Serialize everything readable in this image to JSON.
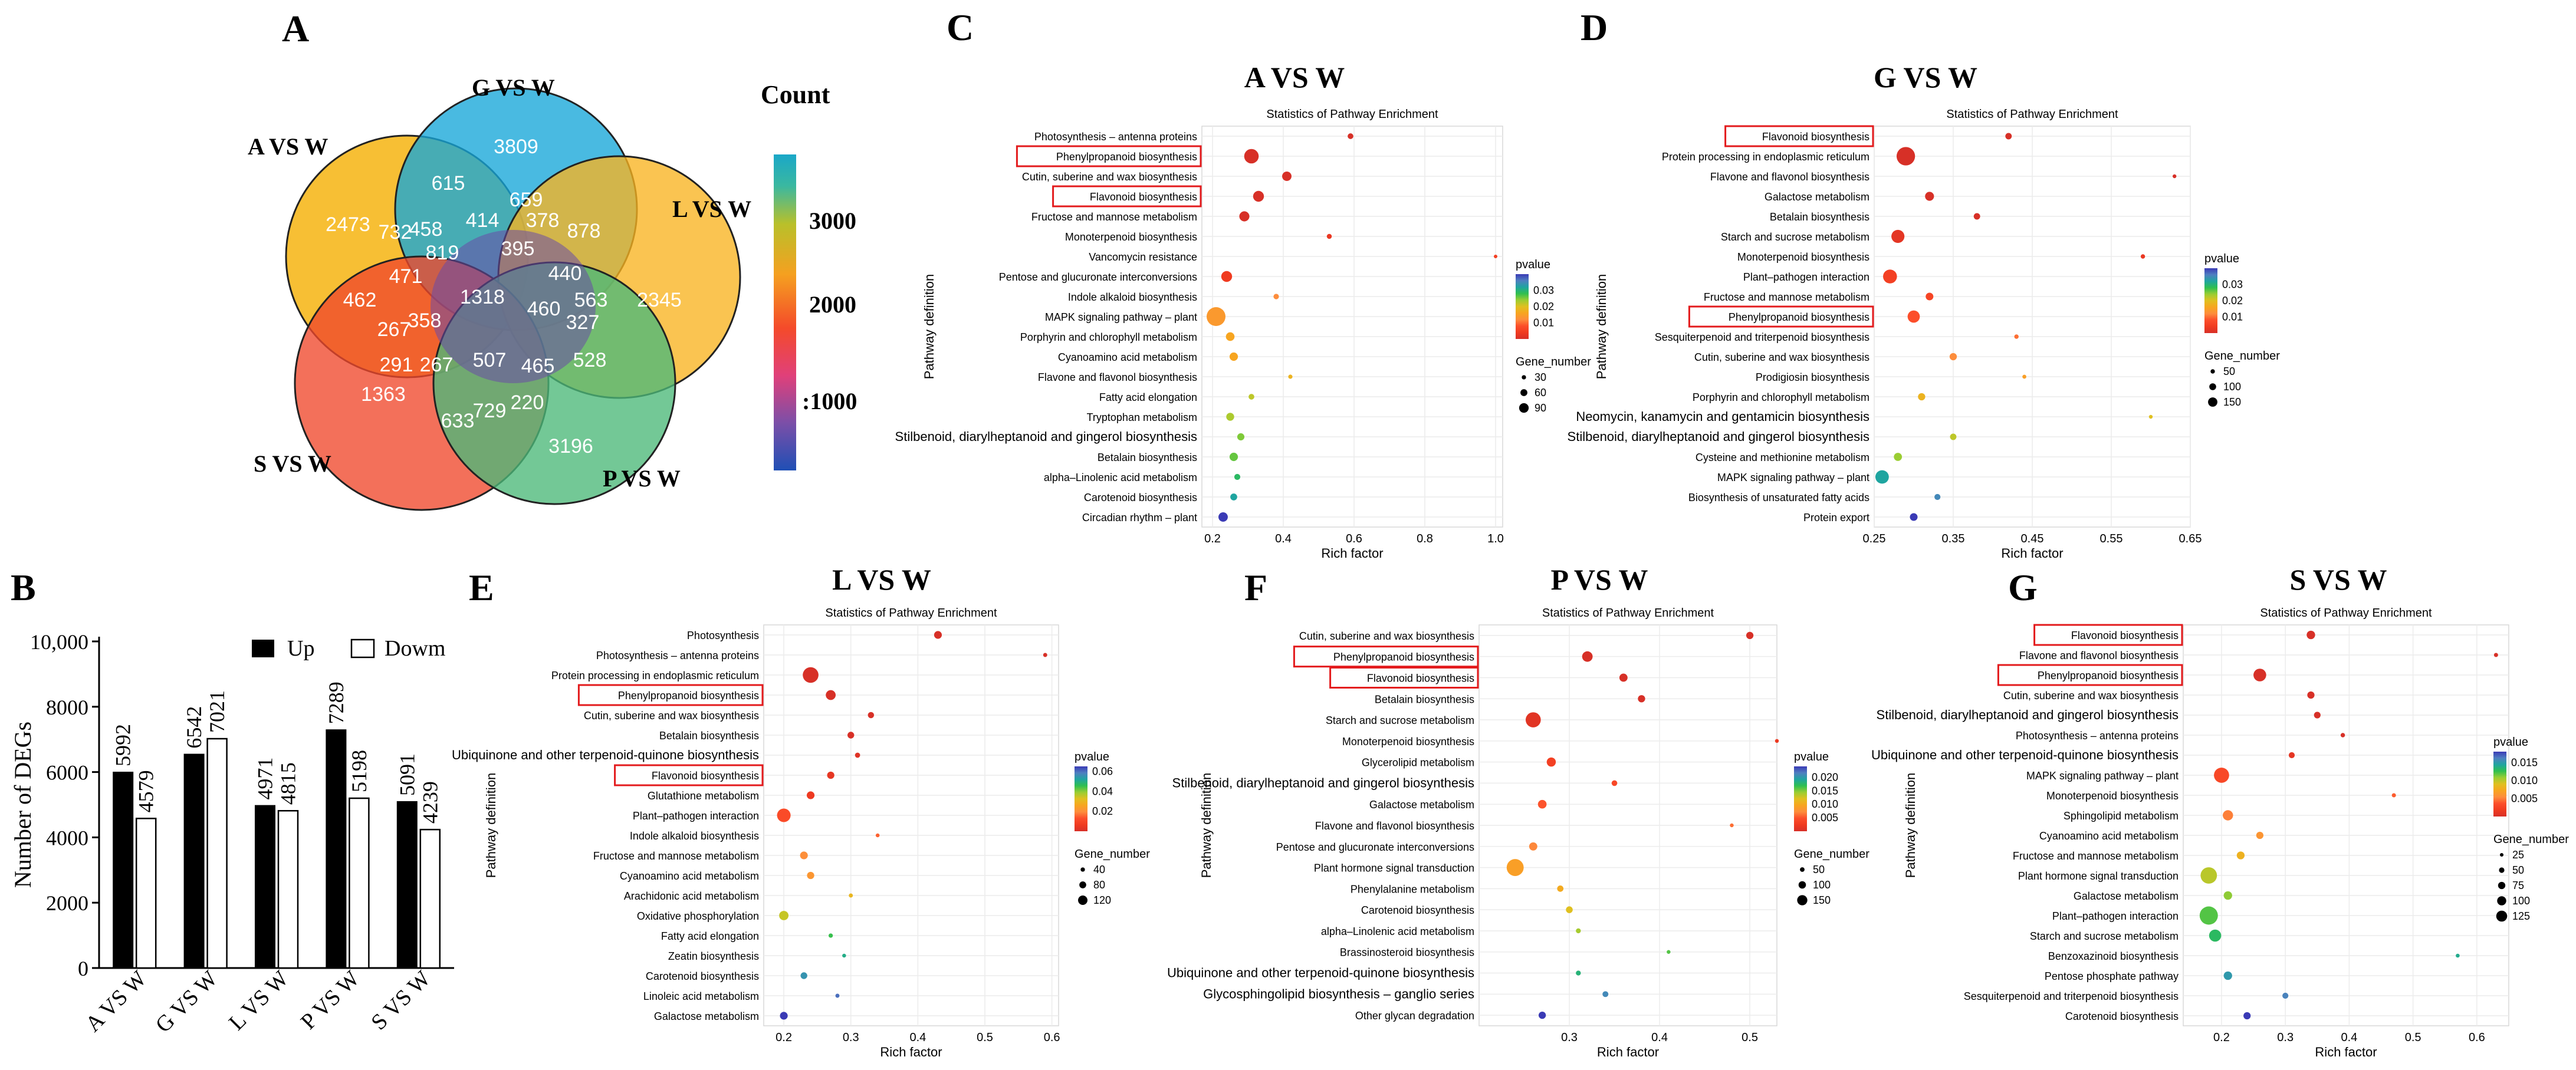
{
  "colors": {
    "palette": [
      "#d73027",
      "#f03b20",
      "#fc4e2a",
      "#fd8d3c",
      "#f7a520",
      "#e0c020",
      "#9acd32",
      "#2fbf4f",
      "#1fa5a0",
      "#4f7fc0",
      "#3a3ab5"
    ],
    "red_box": "#e31a1c",
    "bar_up": "#000000",
    "bar_down": "#ffffff",
    "venn_A": "#f6b81e",
    "venn_G": "#16a7d8",
    "venn_L": "#f8b320",
    "venn_S": "#f0482c",
    "venn_P": "#4cb878"
  },
  "panelA": {
    "letter": "A",
    "sets": [
      "A VS W",
      "G VS W",
      "L VS W",
      "S VS W",
      "P VS W"
    ],
    "legend_title": "Count",
    "legend_ticks": [
      "3000",
      "2000",
      ":1000"
    ],
    "counts": [
      "2473",
      "3809",
      "2345",
      "3196",
      "1363",
      "615",
      "659",
      "878",
      "732",
      "458",
      "414",
      "378",
      "819",
      "395",
      "440",
      "471",
      "1318",
      "460",
      "563",
      "462",
      "267",
      "358",
      "327",
      "528",
      "291",
      "267",
      "507",
      "465",
      "729",
      "220",
      "633"
    ]
  },
  "chart_data": [
    {
      "type": "bar",
      "panel": "B",
      "categories": [
        "A VS W",
        "G VS W",
        "L VS W",
        "P VS W",
        "S VS W"
      ],
      "series": [
        {
          "name": "Up",
          "values": [
            5992,
            6542,
            4971,
            7289,
            5091
          ]
        },
        {
          "name": "Dowm",
          "values": [
            4579,
            7021,
            4815,
            5198,
            4239
          ]
        }
      ],
      "value_labels": {
        "Up": [
          "5992",
          "6542",
          "4971",
          "7289",
          "5091"
        ],
        "Dowm": [
          "4579",
          "7021",
          "4815",
          "5198",
          "4239"
        ]
      },
      "ylabel": "Number of DEGs",
      "yticks": [
        0,
        2000,
        4000,
        6000,
        8000,
        10000
      ],
      "ytick_labels": [
        "0",
        "2000",
        "4000",
        "6000",
        "8000",
        "10,000"
      ],
      "ylim": [
        0,
        10000
      ],
      "legend": [
        "Up",
        "Dowm"
      ]
    },
    {
      "type": "scatter",
      "panel": "C",
      "heading": "A VS W",
      "title": "Statistics of Pathway Enrichment",
      "xlabel": "Rich factor",
      "ylabel": "Pathway definition",
      "xlim": [
        0.17,
        1.02
      ],
      "xticks": [
        0.2,
        0.4,
        0.6,
        0.8,
        1.0
      ],
      "xtick_labels": [
        "0.2",
        "0.4",
        "0.6",
        "0.8",
        "1.0"
      ],
      "pvalue_range": [
        0.0,
        0.04
      ],
      "pvalue_ticks": [
        "0.03",
        "0.02",
        "0.01"
      ],
      "pvalue_tick_values": [
        0.03,
        0.02,
        0.01
      ],
      "gene_ticks": [
        "30",
        "60",
        "90"
      ],
      "gene_tick_values": [
        30,
        60,
        90
      ],
      "gene_range": [
        5,
        110
      ],
      "highlight": [
        "Phenylpropanoid biosynthesis",
        "Flavonoid biosynthesis"
      ],
      "pathways": [
        "Photosynthesis – antenna proteins",
        "Phenylpropanoid biosynthesis",
        "Cutin, suberine and wax biosynthesis",
        "Flavonoid biosynthesis",
        "Fructose and mannose metabolism",
        "Monoterpenoid biosynthesis",
        "Vancomycin resistance",
        "Pentose and glucuronate interconversions",
        "Indole alkaloid biosynthesis",
        "MAPK signaling pathway – plant",
        "Porphyrin and chlorophyll metabolism",
        "Cyanoamino acid metabolism",
        "Flavone and flavonol biosynthesis",
        "Fatty acid elongation",
        "Tryptophan metabolism",
        "Stilbenoid, diarylheptanoid and gingerol biosynthesis",
        "Betalain biosynthesis",
        "alpha–Linolenic acid metabolism",
        "Carotenoid biosynthesis",
        "Circadian rhythm – plant"
      ],
      "rich": [
        0.59,
        0.31,
        0.41,
        0.33,
        0.29,
        0.53,
        1.0,
        0.24,
        0.38,
        0.21,
        0.25,
        0.26,
        0.42,
        0.31,
        0.25,
        0.28,
        0.26,
        0.27,
        0.26,
        0.23
      ],
      "pvalue": [
        0.0,
        0.0,
        0.0,
        0.0,
        0.0,
        0.003,
        0.005,
        0.004,
        0.012,
        0.014,
        0.016,
        0.016,
        0.018,
        0.022,
        0.023,
        0.025,
        0.026,
        0.029,
        0.032,
        0.04
      ],
      "genes": [
        20,
        80,
        45,
        55,
        50,
        15,
        5,
        55,
        18,
        110,
        40,
        38,
        10,
        20,
        35,
        30,
        38,
        22,
        28,
        45
      ]
    },
    {
      "type": "scatter",
      "panel": "D",
      "heading": "G VS W",
      "title": "Statistics of Pathway Enrichment",
      "xlabel": "Rich factor",
      "ylabel": "Pathway definition",
      "xlim": [
        0.25,
        0.65
      ],
      "xticks": [
        0.25,
        0.35,
        0.45,
        0.55,
        0.65
      ],
      "xtick_labels": [
        "0.25",
        "0.35",
        "0.45",
        "0.55",
        "0.65"
      ],
      "pvalue_range": [
        0.0,
        0.04
      ],
      "pvalue_ticks": [
        "0.03",
        "0.02",
        "0.01"
      ],
      "pvalue_tick_values": [
        0.03,
        0.02,
        0.01
      ],
      "gene_ticks": [
        "50",
        "100",
        "150"
      ],
      "gene_tick_values": [
        50,
        100,
        150
      ],
      "gene_range": [
        5,
        190
      ],
      "highlight": [
        "Flavonoid biosynthesis",
        "Phenylpropanoid biosynthesis"
      ],
      "pathways": [
        "Flavonoid biosynthesis",
        "Protein processing in endoplasmic reticulum",
        "Flavone and flavonol biosynthesis",
        "Galactose metabolism",
        "Betalain biosynthesis",
        "Starch and sucrose metabolism",
        "Monoterpenoid biosynthesis",
        "Plant–pathogen interaction",
        "Fructose and mannose metabolism",
        "Phenylpropanoid biosynthesis",
        "Sesquiterpenoid and triterpenoid biosynthesis",
        "Cutin, suberine and wax biosynthesis",
        "Prodigiosin biosynthesis",
        "Porphyrin and chlorophyll metabolism",
        "Neomycin, kanamycin and gentamicin biosynthesis",
        "Stilbenoid, diarylheptanoid and gingerol biosynthesis",
        "Cysteine and methionine metabolism",
        "MAPK signaling pathway – plant",
        "Biosynthesis of unsaturated fatty acids",
        "Protein export"
      ],
      "rich": [
        0.42,
        0.29,
        0.63,
        0.32,
        0.38,
        0.28,
        0.59,
        0.27,
        0.32,
        0.3,
        0.43,
        0.35,
        0.44,
        0.31,
        0.6,
        0.35,
        0.28,
        0.26,
        0.33,
        0.3
      ],
      "pvalue": [
        0.0,
        0.0,
        0.0,
        0.0,
        0.0,
        0.002,
        0.003,
        0.005,
        0.006,
        0.008,
        0.01,
        0.012,
        0.015,
        0.018,
        0.02,
        0.022,
        0.024,
        0.032,
        0.035,
        0.04
      ],
      "genes": [
        40,
        185,
        8,
        70,
        40,
        120,
        15,
        130,
        55,
        110,
        15,
        50,
        10,
        50,
        8,
        40,
        60,
        125,
        35,
        55
      ]
    },
    {
      "type": "scatter",
      "panel": "E",
      "heading": "L VS W",
      "title": "Statistics of Pathway Enrichment",
      "xlabel": "Rich factor",
      "ylabel": "Pathway definition",
      "xlim": [
        0.17,
        0.61
      ],
      "xticks": [
        0.2,
        0.3,
        0.4,
        0.5,
        0.6
      ],
      "xtick_labels": [
        "0.2",
        "0.3",
        "0.4",
        "0.5",
        "0.6"
      ],
      "pvalue_range": [
        0.0,
        0.065
      ],
      "pvalue_ticks": [
        "0.06",
        "0.04",
        "0.02"
      ],
      "pvalue_tick_values": [
        0.06,
        0.04,
        0.02
      ],
      "gene_ticks": [
        "40",
        "80",
        "120"
      ],
      "gene_tick_values": [
        40,
        80,
        120
      ],
      "gene_range": [
        5,
        150
      ],
      "highlight": [
        "Phenylpropanoid biosynthesis",
        "Flavonoid biosynthesis"
      ],
      "pathways": [
        "Photosynthesis",
        "Photosynthesis – antenna proteins",
        "Protein processing in endoplasmic reticulum",
        "Phenylpropanoid biosynthesis",
        "Cutin, suberine and wax biosynthesis",
        "Betalain biosynthesis",
        "Ubiquinone and other terpenoid-quinone biosynthesis",
        "Flavonoid biosynthesis",
        "Glutathione metabolism",
        "Plant–pathogen interaction",
        "Indole alkaloid biosynthesis",
        "Fructose and mannose metabolism",
        "Cyanoamino acid metabolism",
        "Arachidonic acid metabolism",
        "Oxidative phosphorylation",
        "Fatty acid elongation",
        "Zeatin biosynthesis",
        "Carotenoid biosynthesis",
        "Linoleic acid metabolism",
        "Galactose metabolism"
      ],
      "rich": [
        0.43,
        0.59,
        0.24,
        0.27,
        0.33,
        0.3,
        0.31,
        0.27,
        0.24,
        0.2,
        0.34,
        0.23,
        0.24,
        0.3,
        0.2,
        0.27,
        0.29,
        0.23,
        0.28,
        0.2
      ],
      "pvalue": [
        0.0,
        0.0,
        0.0,
        0.0,
        0.0,
        0.0,
        0.002,
        0.004,
        0.006,
        0.012,
        0.015,
        0.02,
        0.022,
        0.03,
        0.035,
        0.045,
        0.05,
        0.055,
        0.06,
        0.065
      ],
      "genes": [
        45,
        10,
        120,
        65,
        30,
        35,
        20,
        40,
        45,
        100,
        8,
        45,
        40,
        10,
        60,
        12,
        8,
        35,
        10,
        45
      ]
    },
    {
      "type": "scatter",
      "panel": "F",
      "heading": "P VS W",
      "title": "Statistics of Pathway Enrichment",
      "xlabel": "Rich factor",
      "ylabel": "Pathway definition",
      "xlim": [
        0.2,
        0.53
      ],
      "xticks": [
        0.3,
        0.4,
        0.5
      ],
      "xtick_labels": [
        "0.3",
        "0.4",
        "0.5"
      ],
      "pvalue_range": [
        0.0,
        0.024
      ],
      "pvalue_ticks": [
        "0.020",
        "0.015",
        "0.010",
        "0.005"
      ],
      "pvalue_tick_values": [
        0.02,
        0.015,
        0.01,
        0.005
      ],
      "gene_ticks": [
        "50",
        "100",
        "150"
      ],
      "gene_tick_values": [
        50,
        100,
        150
      ],
      "gene_range": [
        5,
        170
      ],
      "highlight": [
        "Phenylpropanoid biosynthesis",
        "Flavonoid biosynthesis"
      ],
      "pathways": [
        "Cutin, suberine and wax biosynthesis",
        "Phenylpropanoid biosynthesis",
        "Flavonoid biosynthesis",
        "Betalain biosynthesis",
        "Starch and sucrose metabolism",
        "Monoterpenoid biosynthesis",
        "Glycerolipid metabolism",
        "Stilbenoid, diarylheptanoid and gingerol biosynthesis",
        "Galactose metabolism",
        "Flavone and flavonol biosynthesis",
        "Pentose and glucuronate interconversions",
        "Plant hormone signal transduction",
        "Phenylalanine metabolism",
        "Carotenoid biosynthesis",
        "alpha–Linolenic acid metabolism",
        "Brassinosteroid biosynthesis",
        "Ubiquinone and other terpenoid-quinone biosynthesis",
        "Glycosphingolipid biosynthesis – ganglio series",
        "Other glycan degradation"
      ],
      "rich": [
        0.5,
        0.32,
        0.36,
        0.38,
        0.26,
        0.53,
        0.28,
        0.35,
        0.27,
        0.48,
        0.26,
        0.24,
        0.29,
        0.3,
        0.31,
        0.41,
        0.31,
        0.34,
        0.27
      ],
      "pvalue": [
        0.0,
        0.0,
        0.0,
        0.0,
        0.001,
        0.002,
        0.003,
        0.004,
        0.005,
        0.006,
        0.007,
        0.009,
        0.01,
        0.012,
        0.014,
        0.016,
        0.018,
        0.021,
        0.024
      ],
      "genes": [
        45,
        80,
        55,
        45,
        130,
        8,
        65,
        28,
        60,
        8,
        55,
        150,
        35,
        40,
        20,
        8,
        20,
        30,
        45
      ]
    },
    {
      "type": "scatter",
      "panel": "G",
      "heading": "S VS W",
      "title": "Statistics of Pathway Enrichment",
      "xlabel": "Rich factor",
      "ylabel": "Pathway definition",
      "xlim": [
        0.14,
        0.65
      ],
      "xticks": [
        0.2,
        0.3,
        0.4,
        0.5,
        0.6
      ],
      "xtick_labels": [
        "0.2",
        "0.3",
        "0.4",
        "0.5",
        "0.6"
      ],
      "pvalue_range": [
        0.0,
        0.018
      ],
      "pvalue_ticks": [
        "0.015",
        "0.010",
        "0.005"
      ],
      "pvalue_tick_values": [
        0.015,
        0.01,
        0.005
      ],
      "gene_ticks": [
        "25",
        "50",
        "75",
        "100",
        "125"
      ],
      "gene_tick_values": [
        25,
        50,
        75,
        100,
        125
      ],
      "gene_range": [
        5,
        130
      ],
      "highlight": [
        "Flavonoid biosynthesis",
        "Phenylpropanoid biosynthesis"
      ],
      "pathways": [
        "Flavonoid biosynthesis",
        "Flavone and flavonol biosynthesis",
        "Phenylpropanoid biosynthesis",
        "Cutin, suberine and wax biosynthesis",
        "Stilbenoid, diarylheptanoid and gingerol biosynthesis",
        "Photosynthesis – antenna proteins",
        "Ubiquinone and other terpenoid-quinone biosynthesis",
        "MAPK signaling pathway – plant",
        "Monoterpenoid biosynthesis",
        "Sphingolipid metabolism",
        "Cyanoamino acid metabolism",
        "Fructose and mannose metabolism",
        "Plant hormone signal transduction",
        "Galactose metabolism",
        "Plant–pathogen interaction",
        "Starch and sucrose metabolism",
        "Benzoxazinoid biosynthesis",
        "Pentose phosphate pathway",
        "Sesquiterpenoid and triterpenoid biosynthesis",
        "Carotenoid biosynthesis"
      ],
      "rich": [
        0.34,
        0.63,
        0.26,
        0.34,
        0.35,
        0.39,
        0.31,
        0.2,
        0.47,
        0.21,
        0.26,
        0.23,
        0.18,
        0.21,
        0.18,
        0.19,
        0.57,
        0.21,
        0.3,
        0.24
      ],
      "pvalue": [
        0.0,
        0.0,
        0.0,
        0.0,
        0.0,
        0.0,
        0.001,
        0.003,
        0.004,
        0.005,
        0.006,
        0.008,
        0.01,
        0.011,
        0.012,
        0.013,
        0.014,
        0.015,
        0.016,
        0.018
      ],
      "genes": [
        45,
        10,
        80,
        35,
        30,
        12,
        25,
        100,
        10,
        60,
        35,
        40,
        110,
        45,
        125,
        75,
        8,
        45,
        25,
        35
      ]
    }
  ]
}
